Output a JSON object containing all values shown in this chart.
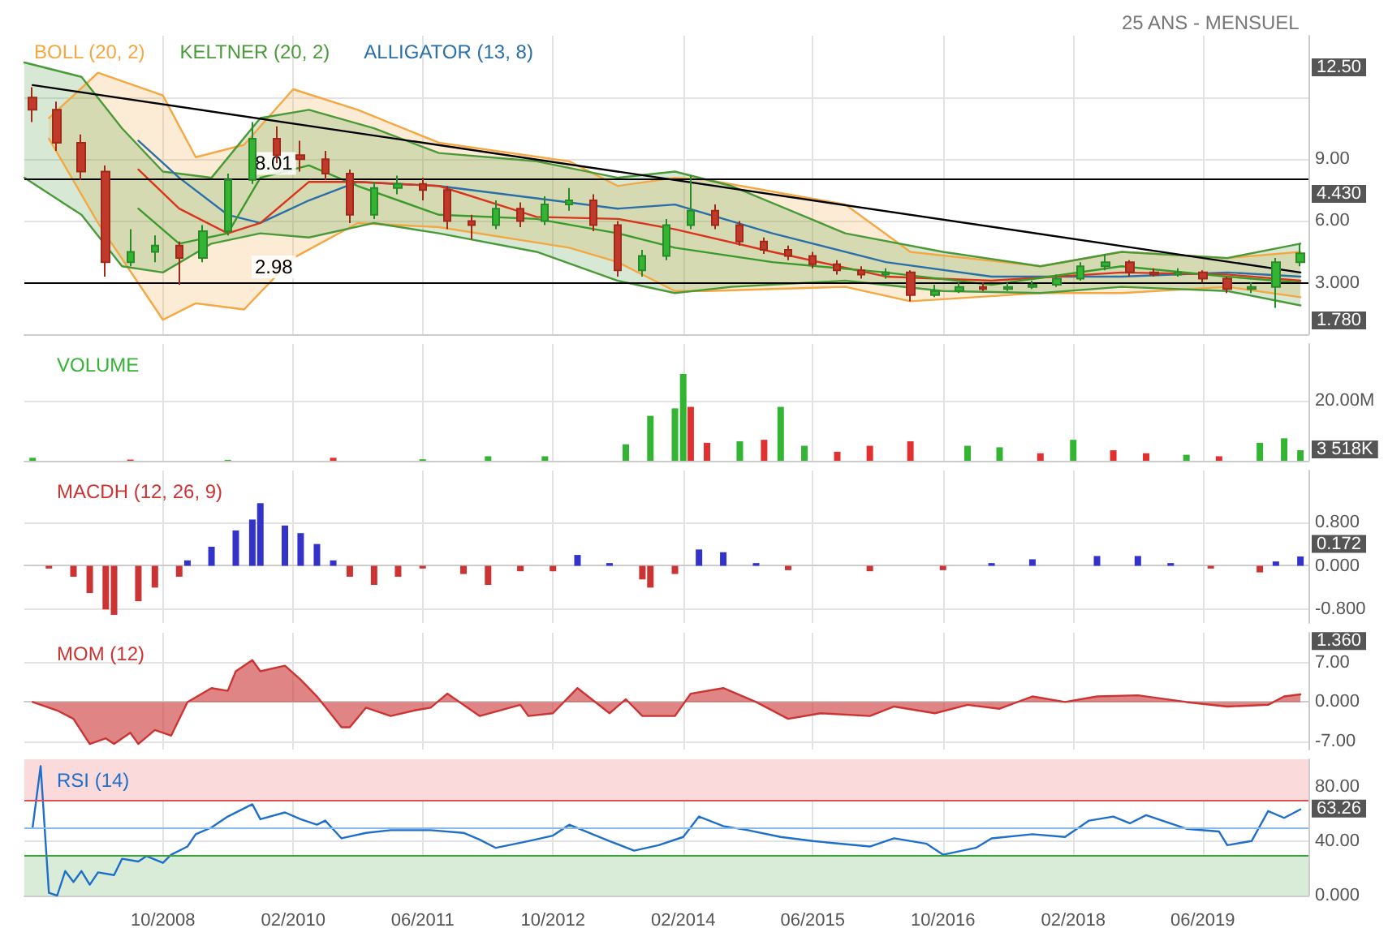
{
  "chart_data": [
    {
      "type": "candlestick",
      "subtitle": "25 ANS - MENSUEL",
      "legend": "top left",
      "grid": true,
      "tick_labels": "y",
      "x": [
        "2007-06",
        "2007-09",
        "2007-12",
        "2008-03",
        "2008-06",
        "2008-09",
        "2008-12",
        "2009-03",
        "2009-06",
        "2009-09",
        "2009-12",
        "2010-03",
        "2010-06",
        "2010-09",
        "2010-12",
        "2011-03",
        "2011-06",
        "2011-09",
        "2011-12",
        "2012-03",
        "2012-06",
        "2012-09",
        "2012-12",
        "2013-03",
        "2013-06",
        "2013-09",
        "2013-12",
        "2014-03",
        "2014-06",
        "2014-09",
        "2014-12",
        "2015-03",
        "2015-06",
        "2015-09",
        "2015-12",
        "2016-03",
        "2016-06",
        "2016-09",
        "2016-12",
        "2017-03",
        "2017-06",
        "2017-09",
        "2017-12",
        "2018-03",
        "2018-06",
        "2018-09",
        "2018-12",
        "2019-03",
        "2019-06",
        "2019-09",
        "2019-12",
        "2020-03",
        "2020-06"
      ],
      "ohlc": [
        [
          12.0,
          12.5,
          10.8,
          11.4
        ],
        [
          11.4,
          11.8,
          9.4,
          9.8
        ],
        [
          9.8,
          10.2,
          8.0,
          8.4
        ],
        [
          8.4,
          8.7,
          3.3,
          4.0
        ],
        [
          4.0,
          5.6,
          3.8,
          4.5
        ],
        [
          4.5,
          5.3,
          4.0,
          4.8
        ],
        [
          4.8,
          5.0,
          2.9,
          4.2
        ],
        [
          4.2,
          5.8,
          4.0,
          5.5
        ],
        [
          5.5,
          8.3,
          5.3,
          8.0
        ],
        [
          8.0,
          10.8,
          7.8,
          10.0
        ],
        [
          10.0,
          10.6,
          8.8,
          9.2
        ],
        [
          9.2,
          9.9,
          8.4,
          9.0
        ],
        [
          9.0,
          9.4,
          8.0,
          8.3
        ],
        [
          8.3,
          8.5,
          5.9,
          6.3
        ],
        [
          6.3,
          7.9,
          6.1,
          7.6
        ],
        [
          7.6,
          8.2,
          7.3,
          7.8
        ],
        [
          7.8,
          8.1,
          7.0,
          7.5
        ],
        [
          7.5,
          7.7,
          5.6,
          6.0
        ],
        [
          6.0,
          6.3,
          5.1,
          5.8
        ],
        [
          5.8,
          7.0,
          5.6,
          6.6
        ],
        [
          6.6,
          6.9,
          5.7,
          6.0
        ],
        [
          6.0,
          7.2,
          5.8,
          6.8
        ],
        [
          6.8,
          7.6,
          6.5,
          7.0
        ],
        [
          7.0,
          7.3,
          5.5,
          5.8
        ],
        [
          5.8,
          6.0,
          3.3,
          3.6
        ],
        [
          3.6,
          4.6,
          3.3,
          4.3
        ],
        [
          4.3,
          6.1,
          4.1,
          5.8
        ],
        [
          5.8,
          8.2,
          5.6,
          6.5
        ],
        [
          6.5,
          6.8,
          5.6,
          5.8
        ],
        [
          5.8,
          6.0,
          4.8,
          5.0
        ],
        [
          5.0,
          5.2,
          4.4,
          4.6
        ],
        [
          4.6,
          4.8,
          4.1,
          4.3
        ],
        [
          4.3,
          4.5,
          3.7,
          3.9
        ],
        [
          3.9,
          4.1,
          3.4,
          3.6
        ],
        [
          3.6,
          3.8,
          3.2,
          3.4
        ],
        [
          3.4,
          3.7,
          3.2,
          3.5
        ],
        [
          3.5,
          3.6,
          2.1,
          2.4
        ],
        [
          2.4,
          2.9,
          2.3,
          2.6
        ],
        [
          2.6,
          3.0,
          2.5,
          2.8
        ],
        [
          2.8,
          3.0,
          2.6,
          2.7
        ],
        [
          2.7,
          3.0,
          2.6,
          2.8
        ],
        [
          2.8,
          3.1,
          2.7,
          2.9
        ],
        [
          2.9,
          3.4,
          2.8,
          3.2
        ],
        [
          3.2,
          4.0,
          3.1,
          3.8
        ],
        [
          3.8,
          4.4,
          3.6,
          4.0
        ],
        [
          4.0,
          4.1,
          3.3,
          3.5
        ],
        [
          3.5,
          3.7,
          3.3,
          3.4
        ],
        [
          3.4,
          3.7,
          3.3,
          3.5
        ],
        [
          3.5,
          3.6,
          3.0,
          3.2
        ],
        [
          3.2,
          3.3,
          2.5,
          2.7
        ],
        [
          2.7,
          3.0,
          2.5,
          2.8
        ],
        [
          2.8,
          4.2,
          1.78,
          4.0
        ],
        [
          4.0,
          4.9,
          3.8,
          4.43
        ]
      ],
      "series": [
        {
          "name": "BOLL (20, 2)",
          "type": "line",
          "color": "#f5a742",
          "x": [
            "2007-08",
            "2008-02",
            "2008-10",
            "2009-02",
            "2009-08",
            "2010-02",
            "2010-10",
            "2011-08",
            "2012-12",
            "2013-06",
            "2014-01",
            "2014-05",
            "2015-10",
            "2016-06",
            "2017-10",
            "2018-08",
            "2019-09",
            "2020-06"
          ],
          "values": [
            11.0,
            13.2,
            12.1,
            9.1,
            9.7,
            12.4,
            11.4,
            9.8,
            8.9,
            7.7,
            8.1,
            8.0,
            6.8,
            4.5,
            3.8,
            4.5,
            4.2,
            4.5
          ],
          "upper": [
            11.0,
            13.2,
            12.1,
            9.1,
            9.7,
            12.4,
            11.4,
            9.8,
            8.9,
            7.7,
            8.1,
            8.0,
            6.8,
            4.5,
            3.8,
            4.5,
            4.2,
            4.5
          ],
          "lower": [
            10.0,
            5.9,
            1.2,
            2.0,
            1.7,
            4.2,
            5.9,
            5.7,
            4.7,
            4.0,
            2.6,
            2.6,
            2.8,
            2.1,
            2.5,
            2.5,
            2.8,
            2.3
          ]
        },
        {
          "type": "line",
          "color": "#f5a742",
          "x": [
            "2007-08",
            "2008-02",
            "2008-10",
            "2009-02",
            "2009-08",
            "2010-02",
            "2010-10",
            "2011-08",
            "2012-12",
            "2013-06",
            "2014-01",
            "2014-05",
            "2015-10",
            "2016-06",
            "2017-10",
            "2018-08",
            "2019-09",
            "2020-06"
          ],
          "values": [
            10.0,
            5.9,
            1.2,
            2.0,
            1.7,
            4.2,
            5.9,
            5.7,
            4.7,
            4.0,
            2.6,
            2.6,
            2.8,
            2.1,
            2.5,
            2.5,
            2.8,
            2.3
          ]
        },
        {
          "name": "KELTNER (20, 2)",
          "type": "line",
          "color": "#4a9a3a",
          "x": [
            "2007-05",
            "2007-12",
            "2008-05",
            "2008-10",
            "2009-04",
            "2009-10",
            "2010-04",
            "2010-12",
            "2011-08",
            "2012-08",
            "2013-06",
            "2014-01",
            "2014-08",
            "2015-10",
            "2016-10",
            "2017-10",
            "2018-08",
            "2019-09",
            "2020-06"
          ],
          "values": [
            13.7,
            13.0,
            10.5,
            8.4,
            8.1,
            11.0,
            11.4,
            10.5,
            9.3,
            8.9,
            8.1,
            8.4,
            7.7,
            5.4,
            4.5,
            3.8,
            4.5,
            4.2,
            4.9
          ],
          "upper": [
            13.7,
            13.0,
            10.5,
            8.4,
            8.1,
            11.0,
            11.4,
            10.5,
            9.3,
            8.9,
            8.1,
            8.4,
            7.7,
            5.4,
            4.5,
            3.8,
            4.5,
            4.2,
            4.9
          ],
          "lower": [
            8.1,
            6.3,
            3.8,
            3.5,
            4.9,
            5.4,
            5.2,
            5.9,
            5.4,
            4.5,
            3.1,
            2.5,
            2.8,
            3.1,
            2.6,
            2.5,
            2.8,
            2.6,
            1.9
          ]
        },
        {
          "type": "line",
          "color": "#4a9a3a",
          "x": [
            "2007-05",
            "2007-12",
            "2008-05",
            "2008-10",
            "2009-04",
            "2009-10",
            "2010-04",
            "2010-12",
            "2011-08",
            "2012-08",
            "2013-06",
            "2014-01",
            "2014-08",
            "2015-10",
            "2016-10",
            "2017-10",
            "2018-08",
            "2019-09",
            "2020-06"
          ],
          "values": [
            8.1,
            6.3,
            3.8,
            3.5,
            4.9,
            5.4,
            5.2,
            5.9,
            5.4,
            4.5,
            3.1,
            2.5,
            2.8,
            3.1,
            2.6,
            2.5,
            2.8,
            2.6,
            1.9
          ]
        },
        {
          "name": "ALLIGATOR (13, 8)",
          "type": "line",
          "color": "#2a6fa8",
          "x": [
            "2008-07",
            "2008-12",
            "2009-06",
            "2009-10",
            "2010-04",
            "2010-10",
            "2011-08",
            "2012-08",
            "2013-06",
            "2014-01",
            "2015-01",
            "2016-03",
            "2017-04",
            "2018-08",
            "2019-09",
            "2020-06"
          ],
          "values": [
            9.9,
            8.1,
            6.3,
            5.9,
            7.0,
            7.9,
            7.7,
            7.1,
            6.6,
            6.8,
            5.4,
            4.0,
            3.3,
            3.3,
            3.5,
            3.3
          ]
        },
        {
          "type": "line",
          "color": "#d9341c",
          "x": [
            "2008-07",
            "2008-12",
            "2009-06",
            "2009-10",
            "2010-04",
            "2010-10",
            "2011-08",
            "2012-08",
            "2013-06",
            "2014-01",
            "2015-01",
            "2016-03",
            "2017-04",
            "2018-08",
            "2019-09",
            "2020-06"
          ],
          "values": [
            8.5,
            6.6,
            5.4,
            5.9,
            7.9,
            7.9,
            7.7,
            6.2,
            6.1,
            5.6,
            4.5,
            3.3,
            3.1,
            3.5,
            3.4,
            3.1
          ]
        },
        {
          "type": "line",
          "color": "#3a9a2a",
          "x": [
            "2008-07",
            "2008-12",
            "2009-06",
            "2009-10",
            "2010-04",
            "2010-10",
            "2011-08",
            "2012-08",
            "2013-06",
            "2014-01",
            "2015-01",
            "2016-03",
            "2017-04",
            "2018-08",
            "2019-09",
            "2020-06"
          ],
          "values": [
            6.6,
            4.9,
            5.4,
            8.1,
            8.7,
            7.7,
            6.3,
            6.1,
            5.4,
            4.7,
            4.0,
            3.5,
            2.9,
            3.8,
            3.3,
            3.0
          ]
        },
        {
          "type": "line",
          "color": "#000000",
          "x": [
            "2007-06",
            "2020-06"
          ],
          "values": [
            12.6,
            3.5
          ]
        }
      ],
      "ref_lines": [
        {
          "axis": "y",
          "value": 8.01,
          "label": "8.01",
          "color": "#000000"
        },
        {
          "axis": "y",
          "value": 2.98,
          "label": "2.98",
          "color": "#000000"
        }
      ],
      "annotations": [
        "12.50",
        "4.430",
        "1.780"
      ],
      "xlim": [
        "2007-05",
        "2020-07"
      ],
      "xticks": [
        {
          "value": "2008-10",
          "label": null
        },
        {
          "value": "2010-02",
          "label": null
        },
        {
          "value": "2011-06",
          "label": null
        },
        {
          "value": "2012-10",
          "label": null
        },
        {
          "value": "2014-02",
          "label": null
        },
        {
          "value": "2015-06",
          "label": null
        },
        {
          "value": "2016-10",
          "label": null
        },
        {
          "value": "2018-02",
          "label": null
        },
        {
          "value": "2019-06",
          "label": null
        }
      ],
      "ylim": [
        0.5,
        15
      ],
      "yticks": [
        {
          "value": 3,
          "label": "3.000"
        },
        {
          "value": 6,
          "label": "6.00"
        },
        {
          "value": 9,
          "label": "9.00"
        },
        {
          "value": 12,
          "label": null
        }
      ]
    },
    {
      "type": "bar",
      "title": "VOLUME",
      "grid": true,
      "tick_labels": "y",
      "x": [
        "2007-06",
        "2008-06",
        "2009-06",
        "2010-07",
        "2011-06",
        "2012-02",
        "2012-09",
        "2013-07",
        "2013-10",
        "2014-01",
        "2014-02",
        "2014-03",
        "2014-05",
        "2014-09",
        "2014-12",
        "2015-02",
        "2015-05",
        "2015-09",
        "2016-01",
        "2016-06",
        "2017-01",
        "2017-05",
        "2017-10",
        "2018-02",
        "2018-07",
        "2018-11",
        "2019-04",
        "2019-08",
        "2020-01",
        "2020-04",
        "2020-06"
      ],
      "values": [
        1.0,
        0.4,
        0.3,
        1.0,
        0.5,
        1.5,
        1.5,
        5.5,
        15,
        17.5,
        29,
        18,
        6,
        6.5,
        7,
        18,
        5,
        3,
        5,
        6.5,
        5,
        4.5,
        2.5,
        7,
        3.5,
        2.5,
        2,
        1.5,
        6,
        7.5,
        3.518
      ],
      "colors": [
        "#33b533",
        "#e03030",
        "#33b533",
        "#e03030",
        "#33b533",
        "#33b533",
        "#33b533",
        "#33b533",
        "#33b533",
        "#33b533",
        "#33b533",
        "#e03030",
        "#e03030",
        "#33b533",
        "#e03030",
        "#33b533",
        "#33b533",
        "#e03030",
        "#e03030",
        "#e03030",
        "#33b533",
        "#33b533",
        "#e03030",
        "#33b533",
        "#e03030",
        "#e03030",
        "#33b533",
        "#e03030",
        "#33b533",
        "#33b533",
        "#33b533"
      ],
      "annotations": [
        "3 518K"
      ],
      "xlim": [
        "2007-05",
        "2020-07"
      ],
      "xticks": [
        {
          "value": "2008-10",
          "label": null
        },
        {
          "value": "2010-02",
          "label": null
        },
        {
          "value": "2011-06",
          "label": null
        },
        {
          "value": "2012-10",
          "label": null
        },
        {
          "value": "2014-02",
          "label": null
        },
        {
          "value": "2015-06",
          "label": null
        },
        {
          "value": "2016-10",
          "label": null
        },
        {
          "value": "2018-02",
          "label": null
        },
        {
          "value": "2019-06",
          "label": null
        }
      ],
      "ylim": [
        0,
        39
      ],
      "yticks": [
        {
          "value": 0,
          "label": null
        },
        {
          "value": 20,
          "label": "20.00M"
        }
      ]
    },
    {
      "type": "bar",
      "title": "MACDH (12, 26, 9)",
      "grid": true,
      "tick_labels": "y",
      "x": [
        "2007-08",
        "2007-11",
        "2008-01",
        "2008-03",
        "2008-04",
        "2008-07",
        "2008-09",
        "2008-12",
        "2009-01",
        "2009-04",
        "2009-07",
        "2009-09",
        "2009-10",
        "2010-01",
        "2010-03",
        "2010-05",
        "2010-07",
        "2010-09",
        "2010-12",
        "2011-03",
        "2011-06",
        "2011-11",
        "2012-02",
        "2012-06",
        "2012-10",
        "2013-01",
        "2013-05",
        "2013-09",
        "2013-10",
        "2014-01",
        "2014-04",
        "2014-07",
        "2014-11",
        "2015-03",
        "2016-01",
        "2016-10",
        "2017-04",
        "2017-09",
        "2018-05",
        "2018-10",
        "2019-02",
        "2019-07",
        "2020-01",
        "2020-03",
        "2020-06"
      ],
      "values": [
        -0.05,
        -0.2,
        -0.5,
        -0.8,
        -0.9,
        -0.65,
        -0.4,
        -0.2,
        0.1,
        0.35,
        0.65,
        0.85,
        1.15,
        0.74,
        0.6,
        0.4,
        0.1,
        -0.2,
        -0.35,
        -0.2,
        -0.05,
        -0.15,
        -0.35,
        -0.1,
        -0.1,
        0.2,
        0.05,
        -0.25,
        -0.4,
        -0.15,
        0.3,
        0.25,
        0.05,
        -0.08,
        -0.1,
        -0.08,
        0.05,
        0.12,
        0.18,
        0.18,
        0.05,
        -0.05,
        -0.12,
        0.08,
        0.172
      ],
      "colors": [
        "#cc3333",
        "#cc3333",
        "#cc3333",
        "#cc3333",
        "#cc3333",
        "#cc3333",
        "#cc3333",
        "#cc3333",
        "#3333cc",
        "#3333cc",
        "#3333cc",
        "#3333cc",
        "#3333cc",
        "#3333cc",
        "#3333cc",
        "#3333cc",
        "#3333cc",
        "#cc3333",
        "#cc3333",
        "#cc3333",
        "#cc3333",
        "#cc3333",
        "#cc3333",
        "#cc3333",
        "#cc3333",
        "#3333cc",
        "#3333cc",
        "#cc3333",
        "#cc3333",
        "#cc3333",
        "#3333cc",
        "#3333cc",
        "#3333cc",
        "#cc3333",
        "#cc3333",
        "#cc3333",
        "#3333cc",
        "#3333cc",
        "#3333cc",
        "#3333cc",
        "#3333cc",
        "#cc3333",
        "#cc3333",
        "#3333cc",
        "#3333cc"
      ],
      "annotations": [
        "0.172"
      ],
      "xlim": [
        "2007-05",
        "2020-07"
      ],
      "xticks": [
        {
          "value": "2008-10",
          "label": null
        },
        {
          "value": "2010-02",
          "label": null
        },
        {
          "value": "2011-06",
          "label": null
        },
        {
          "value": "2012-10",
          "label": null
        },
        {
          "value": "2014-02",
          "label": null
        },
        {
          "value": "2015-06",
          "label": null
        },
        {
          "value": "2016-10",
          "label": null
        },
        {
          "value": "2018-02",
          "label": null
        },
        {
          "value": "2019-06",
          "label": null
        }
      ],
      "ylim": [
        -1.05,
        1.75
      ],
      "yticks": [
        {
          "value": -0.8,
          "label": "-0.800"
        },
        {
          "value": 0,
          "label": "0.000"
        },
        {
          "value": 0.8,
          "label": "0.800"
        }
      ]
    },
    {
      "type": "area",
      "title": "MOM (12)",
      "color": "#cc3333",
      "grid": true,
      "tick_labels": "y",
      "x": [
        "2007-06",
        "2007-09",
        "2007-11",
        "2008-01",
        "2008-03",
        "2008-04",
        "2008-06",
        "2008-07",
        "2008-09",
        "2008-11",
        "2009-01",
        "2009-04",
        "2009-06",
        "2009-07",
        "2009-09",
        "2009-10",
        "2010-01",
        "2010-03",
        "2010-05",
        "2010-08",
        "2010-09",
        "2010-11",
        "2011-02",
        "2011-05",
        "2011-07",
        "2011-09",
        "2012-01",
        "2012-06",
        "2012-07",
        "2012-10",
        "2013-01",
        "2013-05",
        "2013-07",
        "2013-09",
        "2014-01",
        "2014-03",
        "2014-07",
        "2014-11",
        "2015-03",
        "2015-07",
        "2016-01",
        "2016-04",
        "2016-09",
        "2017-01",
        "2017-05",
        "2017-09",
        "2018-01",
        "2018-05",
        "2018-10",
        "2019-04",
        "2019-09",
        "2020-02",
        "2020-04",
        "2020-06"
      ],
      "values": [
        0,
        -1.5,
        -3,
        -7.5,
        -6.5,
        -7.5,
        -5.5,
        -7.5,
        -5,
        -6,
        0,
        2.5,
        2,
        5.5,
        7.5,
        5.5,
        6.5,
        4,
        1,
        -4.5,
        -4.5,
        -1,
        -2.5,
        -1.5,
        -1,
        1.5,
        -2.5,
        -0.5,
        -2.5,
        -2,
        2.5,
        -2,
        0.5,
        -2.5,
        -2.5,
        1.5,
        2.5,
        0,
        -3,
        -2,
        -2.5,
        -0.8,
        -2,
        -0.5,
        -1.2,
        1,
        0,
        1,
        1.2,
        0,
        -0.8,
        -0.5,
        1,
        1.36
      ],
      "annotations": [
        "1.360"
      ],
      "xlim": [
        "2007-05",
        "2020-07"
      ],
      "xticks": [
        {
          "value": "2008-10",
          "label": null
        },
        {
          "value": "2010-02",
          "label": null
        },
        {
          "value": "2011-06",
          "label": null
        },
        {
          "value": "2012-10",
          "label": null
        },
        {
          "value": "2014-02",
          "label": null
        },
        {
          "value": "2015-06",
          "label": null
        },
        {
          "value": "2016-10",
          "label": null
        },
        {
          "value": "2018-02",
          "label": null
        },
        {
          "value": "2019-06",
          "label": null
        }
      ],
      "ylim": [
        -8.5,
        12.4
      ],
      "yticks": [
        {
          "value": -7,
          "label": "-7.00"
        },
        {
          "value": 0,
          "label": "0.000"
        },
        {
          "value": 7,
          "label": "7.00"
        }
      ]
    },
    {
      "type": "line",
      "title": "RSI (14)",
      "color": "#1e6fcc",
      "grid": true,
      "x": [
        "2007-06",
        "2007-07",
        "2007-08",
        "2007-09",
        "2007-10",
        "2007-11",
        "2007-12",
        "2008-01",
        "2008-02",
        "2008-04",
        "2008-05",
        "2008-07",
        "2008-08",
        "2008-10",
        "2008-11",
        "2009-01",
        "2009-02",
        "2009-04",
        "2009-06",
        "2009-09",
        "2009-10",
        "2010-01",
        "2010-03",
        "2010-05",
        "2010-06",
        "2010-08",
        "2010-11",
        "2011-02",
        "2011-07",
        "2011-11",
        "2012-01",
        "2012-03",
        "2012-07",
        "2012-10",
        "2012-12",
        "2013-05",
        "2013-08",
        "2013-11",
        "2014-02",
        "2014-04",
        "2014-07",
        "2014-10",
        "2015-02",
        "2015-06",
        "2016-01",
        "2016-04",
        "2016-08",
        "2016-10",
        "2017-02",
        "2017-04",
        "2017-09",
        "2018-01",
        "2018-04",
        "2018-07",
        "2018-09",
        "2018-11",
        "2019-04",
        "2019-08",
        "2019-09",
        "2019-12",
        "2020-02",
        "2020-04",
        "2020-06"
      ],
      "values": [
        50,
        95,
        2,
        0,
        18,
        10,
        18,
        8,
        17,
        15,
        27,
        25,
        29,
        24,
        30,
        36,
        45,
        50,
        58,
        67,
        56,
        61,
        56,
        52,
        55,
        42,
        46,
        48,
        48,
        46,
        41,
        35,
        40,
        44,
        52,
        40,
        33,
        37,
        43,
        58,
        51,
        48,
        43,
        40,
        36,
        42,
        38,
        30,
        35,
        42,
        45,
        43,
        55,
        58,
        53,
        59,
        49,
        47,
        37,
        40,
        62,
        57,
        63.26
      ],
      "ref_lines": [
        {
          "axis": "y",
          "value": 70,
          "color": "#e05050"
        },
        {
          "axis": "y",
          "value": 30,
          "color": "#40a040"
        },
        {
          "axis": "y",
          "value": 50,
          "color": "#8ab8e8"
        }
      ],
      "bands": [
        {
          "axis": "y",
          "from": 70,
          "to": 100,
          "color": "#fadada"
        },
        {
          "axis": "y",
          "from": 0,
          "to": 30,
          "color": "#d8ecd8"
        }
      ],
      "annotations": [
        "63.26"
      ],
      "xlim": [
        "2007-05",
        "2020-07"
      ],
      "xticks": [
        {
          "value": "2008-10",
          "label": "10/2008"
        },
        {
          "value": "2010-02",
          "label": "02/2010"
        },
        {
          "value": "2011-06",
          "label": "06/2011"
        },
        {
          "value": "2012-10",
          "label": "10/2012"
        },
        {
          "value": "2014-02",
          "label": "02/2014"
        },
        {
          "value": "2015-06",
          "label": "06/2015"
        },
        {
          "value": "2016-10",
          "label": "10/2016"
        },
        {
          "value": "2018-02",
          "label": "02/2018"
        },
        {
          "value": "2019-06",
          "label": "06/2019"
        }
      ],
      "ylim": [
        0,
        100
      ],
      "yticks": [
        {
          "value": 0,
          "label": "0.000"
        },
        {
          "value": 40,
          "label": "40.00"
        },
        {
          "value": 80,
          "label": "80.00"
        }
      ]
    }
  ]
}
